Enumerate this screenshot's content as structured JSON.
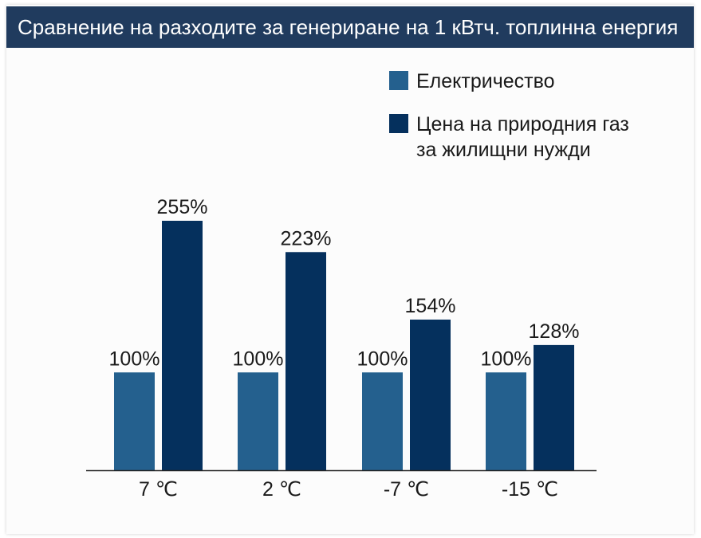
{
  "colors": {
    "title_bg": "#203b5e",
    "title_text": "#ffffff",
    "electricity": "#24608e",
    "gas": "#05305d",
    "axis": "#222222",
    "text": "#1a1a1a"
  },
  "chart_data": {
    "type": "bar",
    "title": "Сравнение на разходите за генериране на 1 кВтч. топлинна енергия",
    "categories": [
      "7 ℃",
      "2 ℃",
      "-7 ℃",
      "-15 ℃"
    ],
    "series": [
      {
        "name": "Електричество",
        "values": [
          100,
          100,
          100,
          100
        ],
        "labels": [
          "100%",
          "100%",
          "100%",
          "100%"
        ],
        "color": "#24608e"
      },
      {
        "name": "Цена на природния газ за жилищни нужди",
        "legend_lines": [
          "Цена на природния газ",
          "за жилищни нужди"
        ],
        "values": [
          255,
          223,
          154,
          128
        ],
        "labels": [
          "255%",
          "223%",
          "154%",
          "128%"
        ],
        "color": "#05305d"
      }
    ],
    "ylim": [
      0,
      255
    ],
    "grid": false,
    "legend_position": "top-right",
    "xlabel": "",
    "ylabel": ""
  }
}
